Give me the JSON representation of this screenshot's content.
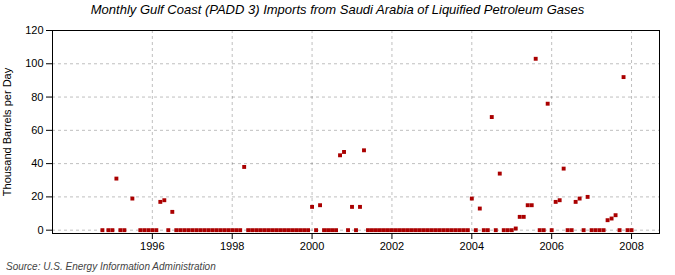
{
  "chart_data": {
    "type": "scatter",
    "title": "Monthly Gulf Coast (PADD 3) Imports from Saudi Arabia of Liquified Petroleum Gases",
    "ylabel": "Thousand Barrels per Day",
    "source": "Source: U.S. Energy Information Administration",
    "color": "#aa0000",
    "marker": "square",
    "grid": true,
    "xlim": [
      1993.5,
      2008.7
    ],
    "xticks": [
      1996,
      1998,
      2000,
      2002,
      2004,
      2006,
      2008
    ],
    "ylim": [
      -2,
      120
    ],
    "yticks": [
      0,
      20,
      40,
      60,
      80,
      100,
      120
    ],
    "x": [
      1994.75,
      1994.9,
      1995.0,
      1995.1,
      1995.2,
      1995.3,
      1995.5,
      1995.7,
      1995.8,
      1995.9,
      1996.0,
      1996.1,
      1996.2,
      1996.3,
      1996.4,
      1996.5,
      1996.6,
      1996.7,
      1996.8,
      1996.9,
      1997.0,
      1997.1,
      1997.2,
      1997.3,
      1997.4,
      1997.5,
      1997.6,
      1997.7,
      1997.8,
      1997.9,
      1998.0,
      1998.1,
      1998.2,
      1998.3,
      1998.4,
      1998.5,
      1998.6,
      1998.7,
      1998.8,
      1998.9,
      1999.0,
      1999.1,
      1999.2,
      1999.3,
      1999.4,
      1999.5,
      1999.6,
      1999.7,
      1999.8,
      1999.9,
      2000.0,
      2000.1,
      2000.2,
      2000.3,
      2000.4,
      2000.5,
      2000.6,
      2000.7,
      2000.8,
      2000.9,
      2001.0,
      2001.1,
      2001.2,
      2001.3,
      2001.4,
      2001.5,
      2001.6,
      2001.7,
      2001.8,
      2001.9,
      2002.0,
      2002.1,
      2002.2,
      2002.3,
      2002.4,
      2002.5,
      2002.6,
      2002.7,
      2002.8,
      2002.9,
      2003.0,
      2003.1,
      2003.2,
      2003.3,
      2003.4,
      2003.5,
      2003.6,
      2003.7,
      2003.8,
      2003.9,
      2004.0,
      2004.1,
      2004.2,
      2004.3,
      2004.4,
      2004.5,
      2004.6,
      2004.7,
      2004.8,
      2004.9,
      2005.0,
      2005.1,
      2005.2,
      2005.3,
      2005.4,
      2005.5,
      2005.6,
      2005.7,
      2005.8,
      2005.9,
      2006.0,
      2006.1,
      2006.2,
      2006.3,
      2006.4,
      2006.5,
      2006.6,
      2006.7,
      2006.8,
      2006.9,
      2007.0,
      2007.1,
      2007.2,
      2007.3,
      2007.4,
      2007.5,
      2007.6,
      2007.7,
      2007.8,
      2007.9,
      2008.0
    ],
    "values": [
      0,
      0,
      0,
      31,
      0,
      0,
      19,
      0,
      0,
      0,
      0,
      0,
      17,
      18,
      0,
      11,
      0,
      0,
      0,
      0,
      0,
      0,
      0,
      0,
      0,
      0,
      0,
      0,
      0,
      0,
      0,
      0,
      0,
      38,
      0,
      0,
      0,
      0,
      0,
      0,
      0,
      0,
      0,
      0,
      0,
      0,
      0,
      0,
      0,
      0,
      14,
      0,
      15,
      0,
      0,
      0,
      0,
      45,
      47,
      0,
      14,
      0,
      14,
      48,
      0,
      0,
      0,
      0,
      0,
      0,
      0,
      0,
      0,
      0,
      0,
      0,
      0,
      0,
      0,
      0,
      0,
      0,
      0,
      0,
      0,
      0,
      0,
      0,
      0,
      0,
      19,
      0,
      13,
      0,
      0,
      68,
      0,
      34,
      0,
      0,
      0,
      1,
      8,
      8,
      15,
      15,
      103,
      0,
      0,
      76,
      0,
      17,
      18,
      37,
      0,
      0,
      17,
      19,
      0,
      20,
      0,
      0,
      0,
      0,
      6,
      7,
      9,
      0,
      92,
      0,
      0
    ]
  }
}
